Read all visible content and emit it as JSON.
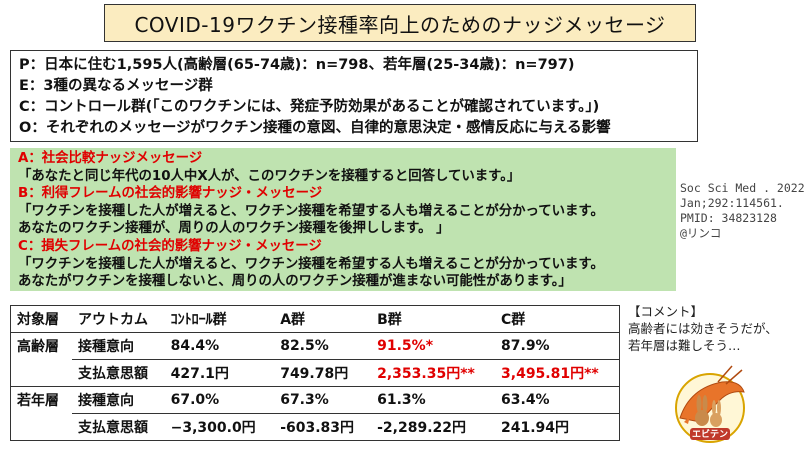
{
  "title": "COVID-19ワクチン接種率向上のためのナッジメッセージ",
  "pico": {
    "p": "P：日本に住む1,595人(高齢層(65-74歳)：n=798、若年層(25-34歳)：n=797)",
    "e": "E：3種の異なるメッセージ群",
    "c": "C：コントロール群(「このワクチンには、発症予防効果があることが確認されています。」)",
    "o": "O：それぞれのメッセージがワクチン接種の意図、自律的意思決定・感情反応に与える影響"
  },
  "messages": {
    "a_title": "A：社会比較ナッジメッセージ",
    "a_text": "「あなたと同じ年代の10人中X人が、このワクチンを接種すると回答しています。」",
    "b_title": "B：利得フレームの社会的影響ナッジ・メッセージ",
    "b_text1": "「ワクチンを接種した人が増えると、ワクチン接種を希望する人も増えることが分かっています。",
    "b_text2": "あなたのワクチン接種が、周りの人のワクチン接種を後押しします。 」",
    "c_title": "C：損失フレームの社会的影響ナッジ・メッセージ",
    "c_text1": "「ワクチンを接種した人が増えると、ワクチン接種を希望する人も増えることが分かっています。",
    "c_text2": "あなたがワクチンを接種しないと、周りの人のワクチン接種が進まない可能性があります。」"
  },
  "citation": {
    "line1": "Soc Sci Med . 2022",
    "line2": "Jan;292:114561.",
    "line3": "PMID: 34823128",
    "line4": "@リンコ"
  },
  "table": {
    "headers": [
      "対象層",
      "アウトカム",
      "ｺﾝﾄﾛｰﾙ群",
      "A群",
      "B群",
      "C群"
    ],
    "groups": [
      {
        "group": "高齢層",
        "rows": [
          {
            "outcome": "接種意向",
            "control": "84.4%",
            "a": "82.5%",
            "b": "91.5%*",
            "c": "87.9%"
          },
          {
            "outcome": "支払意思額",
            "control": "427.1円",
            "a": "749.78円",
            "b": "2,353.35円**",
            "c": "3,495.81円**"
          }
        ]
      },
      {
        "group": "若年層",
        "rows": [
          {
            "outcome": "接種意向",
            "control": "67.0%",
            "a": "67.3%",
            "b": "61.3%",
            "c": "63.4%"
          },
          {
            "outcome": "支払意思額",
            "control": "−3,300.0円",
            "a": "-603.83円",
            "b": "-2,289.22円",
            "c": "241.94円"
          }
        ]
      }
    ]
  },
  "comment": {
    "heading": "【コメント】",
    "line1": "高齢者には効きそうだが、",
    "line2": "若年層は難しそう…"
  },
  "logo": {
    "label": "エビテン",
    "icon": "rabbit-shrimp-mascot-icon"
  }
}
